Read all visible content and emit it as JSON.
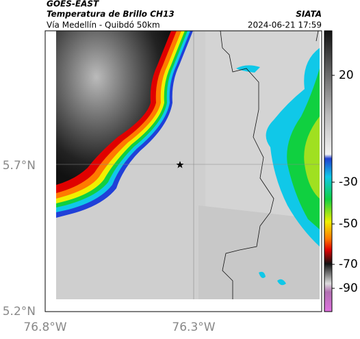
{
  "header": {
    "source": "GOES-EAST",
    "product": "Temperatura de Brillo CH13",
    "route": "Vía Medellín - Quibdó 50km",
    "agency": "SIATA",
    "timestamp": "2024-06-21 17:59"
  },
  "axes": {
    "lat_labels": [
      "5.7°N",
      "5.2°N"
    ],
    "lon_labels": [
      "76.8°W",
      "76.3°W"
    ]
  },
  "colorbar": {
    "ticks": [
      "20",
      "-30",
      "-50",
      "-70",
      "-90"
    ]
  }
}
